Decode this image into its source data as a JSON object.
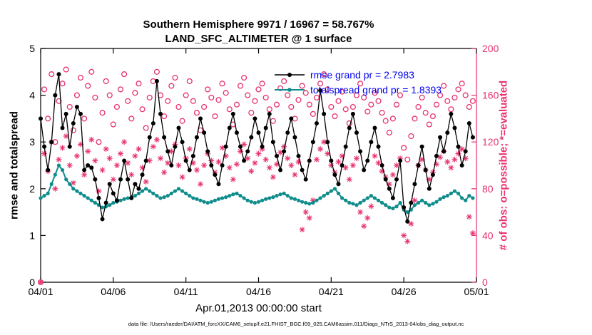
{
  "titles": {
    "line1": "Southern Hemisphere 9971 / 16967 = 58.767%",
    "line2": "LAND_SFC_ALTIMETER @ 1 surface"
  },
  "legend": {
    "rmse_label": "rmse grand pr = 2.7983",
    "totalspread_label": "totalspread grand pr = 1.8393"
  },
  "axes": {
    "left_label": "rmse and totalspread",
    "right_label": "# of obs: o=possible; *=evaluated",
    "x_label": "Apr.01,2013 00:00:00 start"
  },
  "caption": {
    "text": "data file: /Users/raeder/DAI/ATM_forcXX/CAM6_setup/f.e21.FHIST_BGC.f09_025.CAM6assim.011/Diags_NTrS_2013-04/obs_diag_output.nc"
  },
  "colors": {
    "rmse": "#000000",
    "totalspread": "#0f8c8c",
    "obs": "#e8316e",
    "legend_text": "#0000ee",
    "axis": "#000000"
  },
  "chart_data": {
    "type": "line",
    "title": "Southern Hemisphere 9971 / 16967 = 58.767% — LAND_SFC_ALTIMETER @ 1 surface",
    "x_tick_labels": [
      "04/01",
      "04/06",
      "04/11",
      "04/16",
      "04/21",
      "04/26",
      "05/01"
    ],
    "points_per_day": 4,
    "days": 30,
    "left_axis": {
      "min": 0,
      "max": 5,
      "ticks": [
        0,
        1,
        2,
        3,
        4,
        5
      ],
      "label": "rmse and totalspread"
    },
    "right_axis": {
      "min": 0,
      "max": 200,
      "ticks": [
        0,
        40,
        80,
        120,
        160,
        200
      ],
      "label": "# of obs: o=possible; *=evaluated"
    },
    "grid": false,
    "legend_position": "top-center-inside",
    "series": [
      {
        "name": "rmse",
        "axis": "left",
        "color": "#000000",
        "grand_pr": 2.7983,
        "values": [
          3.5,
          2.9,
          2.4,
          3.0,
          4.0,
          4.45,
          3.3,
          3.6,
          2.9,
          3.4,
          3.75,
          3.6,
          2.4,
          2.5,
          2.45,
          2.2,
          1.8,
          1.35,
          1.7,
          2.1,
          1.9,
          1.75,
          2.2,
          2.6,
          2.2,
          1.8,
          2.1,
          2.0,
          2.3,
          2.6,
          3.1,
          3.4,
          4.3,
          3.6,
          3.1,
          2.8,
          2.5,
          2.9,
          3.3,
          3.0,
          2.6,
          2.4,
          2.7,
          3.1,
          3.5,
          3.2,
          2.8,
          2.5,
          2.3,
          2.1,
          2.5,
          2.9,
          3.3,
          3.6,
          3.2,
          2.9,
          2.6,
          2.8,
          3.1,
          3.5,
          3.2,
          2.9,
          3.3,
          3.6,
          3.0,
          2.7,
          2.4,
          2.8,
          3.2,
          3.5,
          3.1,
          2.7,
          2.4,
          2.2,
          2.6,
          3.0,
          3.4,
          4.1,
          3.6,
          3.0,
          2.6,
          2.3,
          2.1,
          2.5,
          2.9,
          3.3,
          3.6,
          3.2,
          2.8,
          2.4,
          2.6,
          3.0,
          3.3,
          2.9,
          2.5,
          2.2,
          2.0,
          1.8,
          2.2,
          2.6,
          1.6,
          1.3,
          1.7,
          2.1,
          2.5,
          2.9,
          2.4,
          2.0,
          2.3,
          2.7,
          3.1,
          2.8,
          3.2,
          3.6,
          3.3,
          2.9,
          2.5,
          2.8,
          3.4,
          3.1
        ]
      },
      {
        "name": "totalspread",
        "axis": "left",
        "color": "#0f8c8c",
        "grand_pr": 1.8393,
        "values": [
          1.8,
          1.85,
          1.9,
          2.1,
          2.3,
          2.5,
          2.4,
          2.2,
          2.1,
          2.0,
          1.95,
          1.9,
          1.85,
          1.8,
          1.75,
          1.7,
          1.65,
          1.6,
          1.62,
          1.65,
          1.7,
          1.72,
          1.75,
          1.78,
          1.8,
          1.82,
          1.85,
          1.9,
          1.95,
          2.0,
          1.95,
          1.9,
          1.85,
          1.8,
          1.82,
          1.85,
          1.9,
          1.95,
          2.0,
          1.95,
          1.9,
          1.85,
          1.8,
          1.78,
          1.75,
          1.72,
          1.7,
          1.72,
          1.75,
          1.78,
          1.8,
          1.82,
          1.85,
          1.88,
          1.9,
          1.85,
          1.8,
          1.75,
          1.72,
          1.7,
          1.72,
          1.75,
          1.78,
          1.8,
          1.82,
          1.85,
          1.88,
          1.9,
          1.85,
          1.8,
          1.78,
          1.75,
          1.72,
          1.7,
          1.68,
          1.7,
          1.75,
          1.8,
          1.85,
          1.9,
          1.95,
          2.0,
          1.9,
          1.8,
          1.75,
          1.7,
          1.68,
          1.65,
          1.7,
          1.75,
          1.8,
          1.85,
          1.8,
          1.75,
          1.7,
          1.65,
          1.6,
          1.58,
          1.62,
          1.7,
          1.55,
          1.5,
          1.55,
          1.65,
          1.7,
          1.75,
          1.7,
          1.65,
          1.68,
          1.72,
          1.78,
          1.82,
          1.85,
          1.9,
          1.95,
          1.9,
          1.8,
          1.75,
          1.85,
          1.8
        ]
      }
    ],
    "scatter": [
      {
        "name": "possible",
        "marker": "o",
        "axis": "right",
        "color": "#e8316e",
        "values": [
          0,
          165,
          140,
          178,
          120,
          155,
          170,
          182,
          150,
          130,
          160,
          175,
          140,
          168,
          180,
          158,
          120,
          145,
          172,
          160,
          135,
          150,
          165,
          178,
          155,
          140,
          162,
          170,
          148,
          132,
          158,
          172,
          180,
          160,
          142,
          155,
          168,
          175,
          150,
          138,
          160,
          172,
          155,
          145,
          130,
          150,
          165,
          158,
          142,
          156,
          170,
          162,
          148,
          135,
          152,
          168,
          175,
          160,
          145,
          155,
          165,
          170,
          158,
          148,
          138,
          152,
          166,
          172,
          160,
          150,
          140,
          156,
          168,
          162,
          152,
          144,
          158,
          170,
          178,
          165,
          150,
          142,
          155,
          163,
          148,
          136,
          150,
          160,
          170,
          158,
          146,
          152,
          162,
          155,
          145,
          138,
          128,
          140,
          152,
          160,
          115,
          105,
          125,
          140,
          150,
          158,
          145,
          135,
          142,
          152,
          160,
          168,
          155,
          148,
          158,
          165,
          170,
          160,
          150,
          155
        ]
      },
      {
        "name": "evaluated",
        "marker": "*",
        "axis": "right",
        "color": "#e8316e",
        "values": [
          0,
          110,
          95,
          120,
          80,
          105,
          115,
          125,
          100,
          85,
          108,
          118,
          92,
          112,
          122,
          104,
          78,
          96,
          114,
          106,
          88,
          100,
          110,
          120,
          102,
          92,
          108,
          114,
          98,
          86,
          104,
          116,
          122,
          106,
          94,
          102,
          112,
          118,
          100,
          90,
          106,
          114,
          102,
          96,
          84,
          100,
          110,
          104,
          94,
          103,
          115,
          108,
          98,
          88,
          101,
          112,
          118,
          106,
          95,
          102,
          110,
          114,
          105,
          98,
          90,
          101,
          111,
          116,
          106,
          100,
          92,
          103,
          45,
          60,
          55,
          70,
          105,
          114,
          120,
          110,
          100,
          94,
          103,
          108,
          98,
          88,
          100,
          106,
          60,
          48,
          55,
          65,
          108,
          102,
          95,
          90,
          84,
          92,
          100,
          106,
          40,
          35,
          50,
          70,
          100,
          105,
          96,
          88,
          94,
          101,
          107,
          112,
          103,
          98,
          105,
          110,
          114,
          106,
          56,
          42
        ]
      }
    ]
  }
}
